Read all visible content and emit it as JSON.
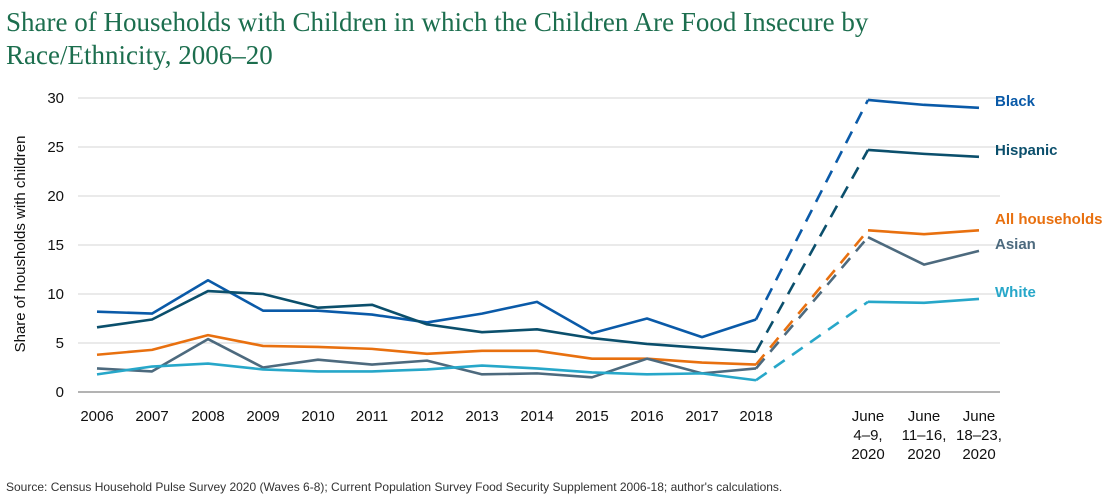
{
  "title": "Share of Households with Children in which the Children Are Food Insecure by Race/Ethnicity, 2006–20",
  "source": "Source: Census Household Pulse Survey 2020 (Waves 6-8); Current Population Survey Food Security Supplement 2006-18; author's calculations.",
  "chart_data": {
    "type": "line",
    "title": "Share of Households with Children in which the Children Are Food Insecure by Race/Ethnicity, 2006–20",
    "ylabel": "Share of housholds with children",
    "xlabel": "",
    "ylim": [
      0,
      30
    ],
    "yticks": [
      0,
      5,
      10,
      15,
      20,
      25,
      30
    ],
    "grid": true,
    "categories": [
      [
        "2006"
      ],
      [
        "2007"
      ],
      [
        "2008"
      ],
      [
        "2009"
      ],
      [
        "2010"
      ],
      [
        "2011"
      ],
      [
        "2012"
      ],
      [
        "2013"
      ],
      [
        "2014"
      ],
      [
        "2015"
      ],
      [
        "2016"
      ],
      [
        "2017"
      ],
      [
        "2018"
      ],
      [
        "June",
        "4–9,",
        "2020"
      ],
      [
        "June",
        "11–16,",
        "2020"
      ],
      [
        "June",
        "18–23,",
        "2020"
      ]
    ],
    "note": "Dashed segments connect 2018 to June 4–9, 2020",
    "series": [
      {
        "name": "Black",
        "color": "#0a5aa8",
        "values": [
          8.2,
          8.0,
          11.4,
          8.3,
          8.3,
          7.9,
          7.1,
          8.0,
          9.2,
          6.0,
          7.5,
          5.6,
          7.4,
          29.8,
          29.3,
          29.0
        ]
      },
      {
        "name": "Hispanic",
        "color": "#0b4f6c",
        "values": [
          6.6,
          7.4,
          10.3,
          10.0,
          8.6,
          8.9,
          6.9,
          6.1,
          6.4,
          5.5,
          4.9,
          4.5,
          4.1,
          24.7,
          24.3,
          24.0
        ]
      },
      {
        "name": "All households",
        "color": "#e8700f",
        "values": [
          3.8,
          4.3,
          5.8,
          4.7,
          4.6,
          4.4,
          3.9,
          4.2,
          4.2,
          3.4,
          3.4,
          3.0,
          2.8,
          16.5,
          16.1,
          16.5
        ]
      },
      {
        "name": "Asian",
        "color": "#4d6a7e",
        "values": [
          2.4,
          2.1,
          5.4,
          2.5,
          3.3,
          2.8,
          3.2,
          1.8,
          1.9,
          1.5,
          3.4,
          1.9,
          2.4,
          15.8,
          13.0,
          14.4
        ]
      },
      {
        "name": "White",
        "color": "#27a7c9",
        "values": [
          1.8,
          2.6,
          2.9,
          2.3,
          2.1,
          2.1,
          2.3,
          2.7,
          2.4,
          2.0,
          1.8,
          1.9,
          1.2,
          9.2,
          9.1,
          9.5
        ]
      }
    ]
  }
}
